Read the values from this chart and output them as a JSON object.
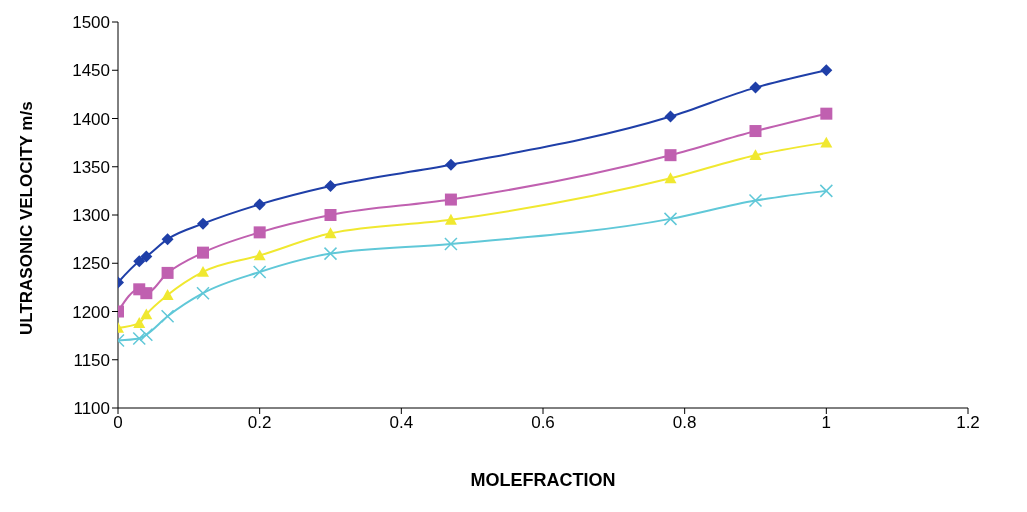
{
  "chart_data": {
    "type": "line",
    "xlabel": "MOLEFRACTION",
    "ylabel": "ULTRASONIC VELOCITY m/s",
    "x": [
      0,
      0.03,
      0.04,
      0.07,
      0.12,
      0.2,
      0.3,
      0.47,
      0.78,
      0.9,
      1
    ],
    "series": [
      {
        "color": "#1f3fa8",
        "marker": "diamond",
        "values": [
          1230,
          1252,
          1257,
          1275,
          1291,
          1311,
          1330,
          1352,
          1402,
          1432,
          1450
        ]
      },
      {
        "color": "#c060b0",
        "marker": "square",
        "values": [
          1200,
          1223,
          1219,
          1240,
          1261,
          1282,
          1300,
          1316,
          1362,
          1387,
          1405
        ]
      },
      {
        "color": "#f0e830",
        "marker": "triangle",
        "values": [
          1183,
          1188,
          1197,
          1217,
          1241,
          1258,
          1281,
          1295,
          1338,
          1362,
          1375
        ]
      },
      {
        "color": "#60c8d8",
        "marker": "cross",
        "values": [
          1170,
          1172,
          1176,
          1195,
          1219,
          1241,
          1260,
          1270,
          1296,
          1315,
          1325
        ]
      }
    ],
    "xlim": [
      0,
      1.2
    ],
    "xticks": [
      0,
      0.2,
      0.4,
      0.6,
      0.8,
      1,
      1.2
    ],
    "ylim": [
      1100,
      1500
    ],
    "yticks": [
      1100,
      1150,
      1200,
      1250,
      1300,
      1350,
      1400,
      1450,
      1500
    ],
    "grid": false,
    "legend": false
  }
}
